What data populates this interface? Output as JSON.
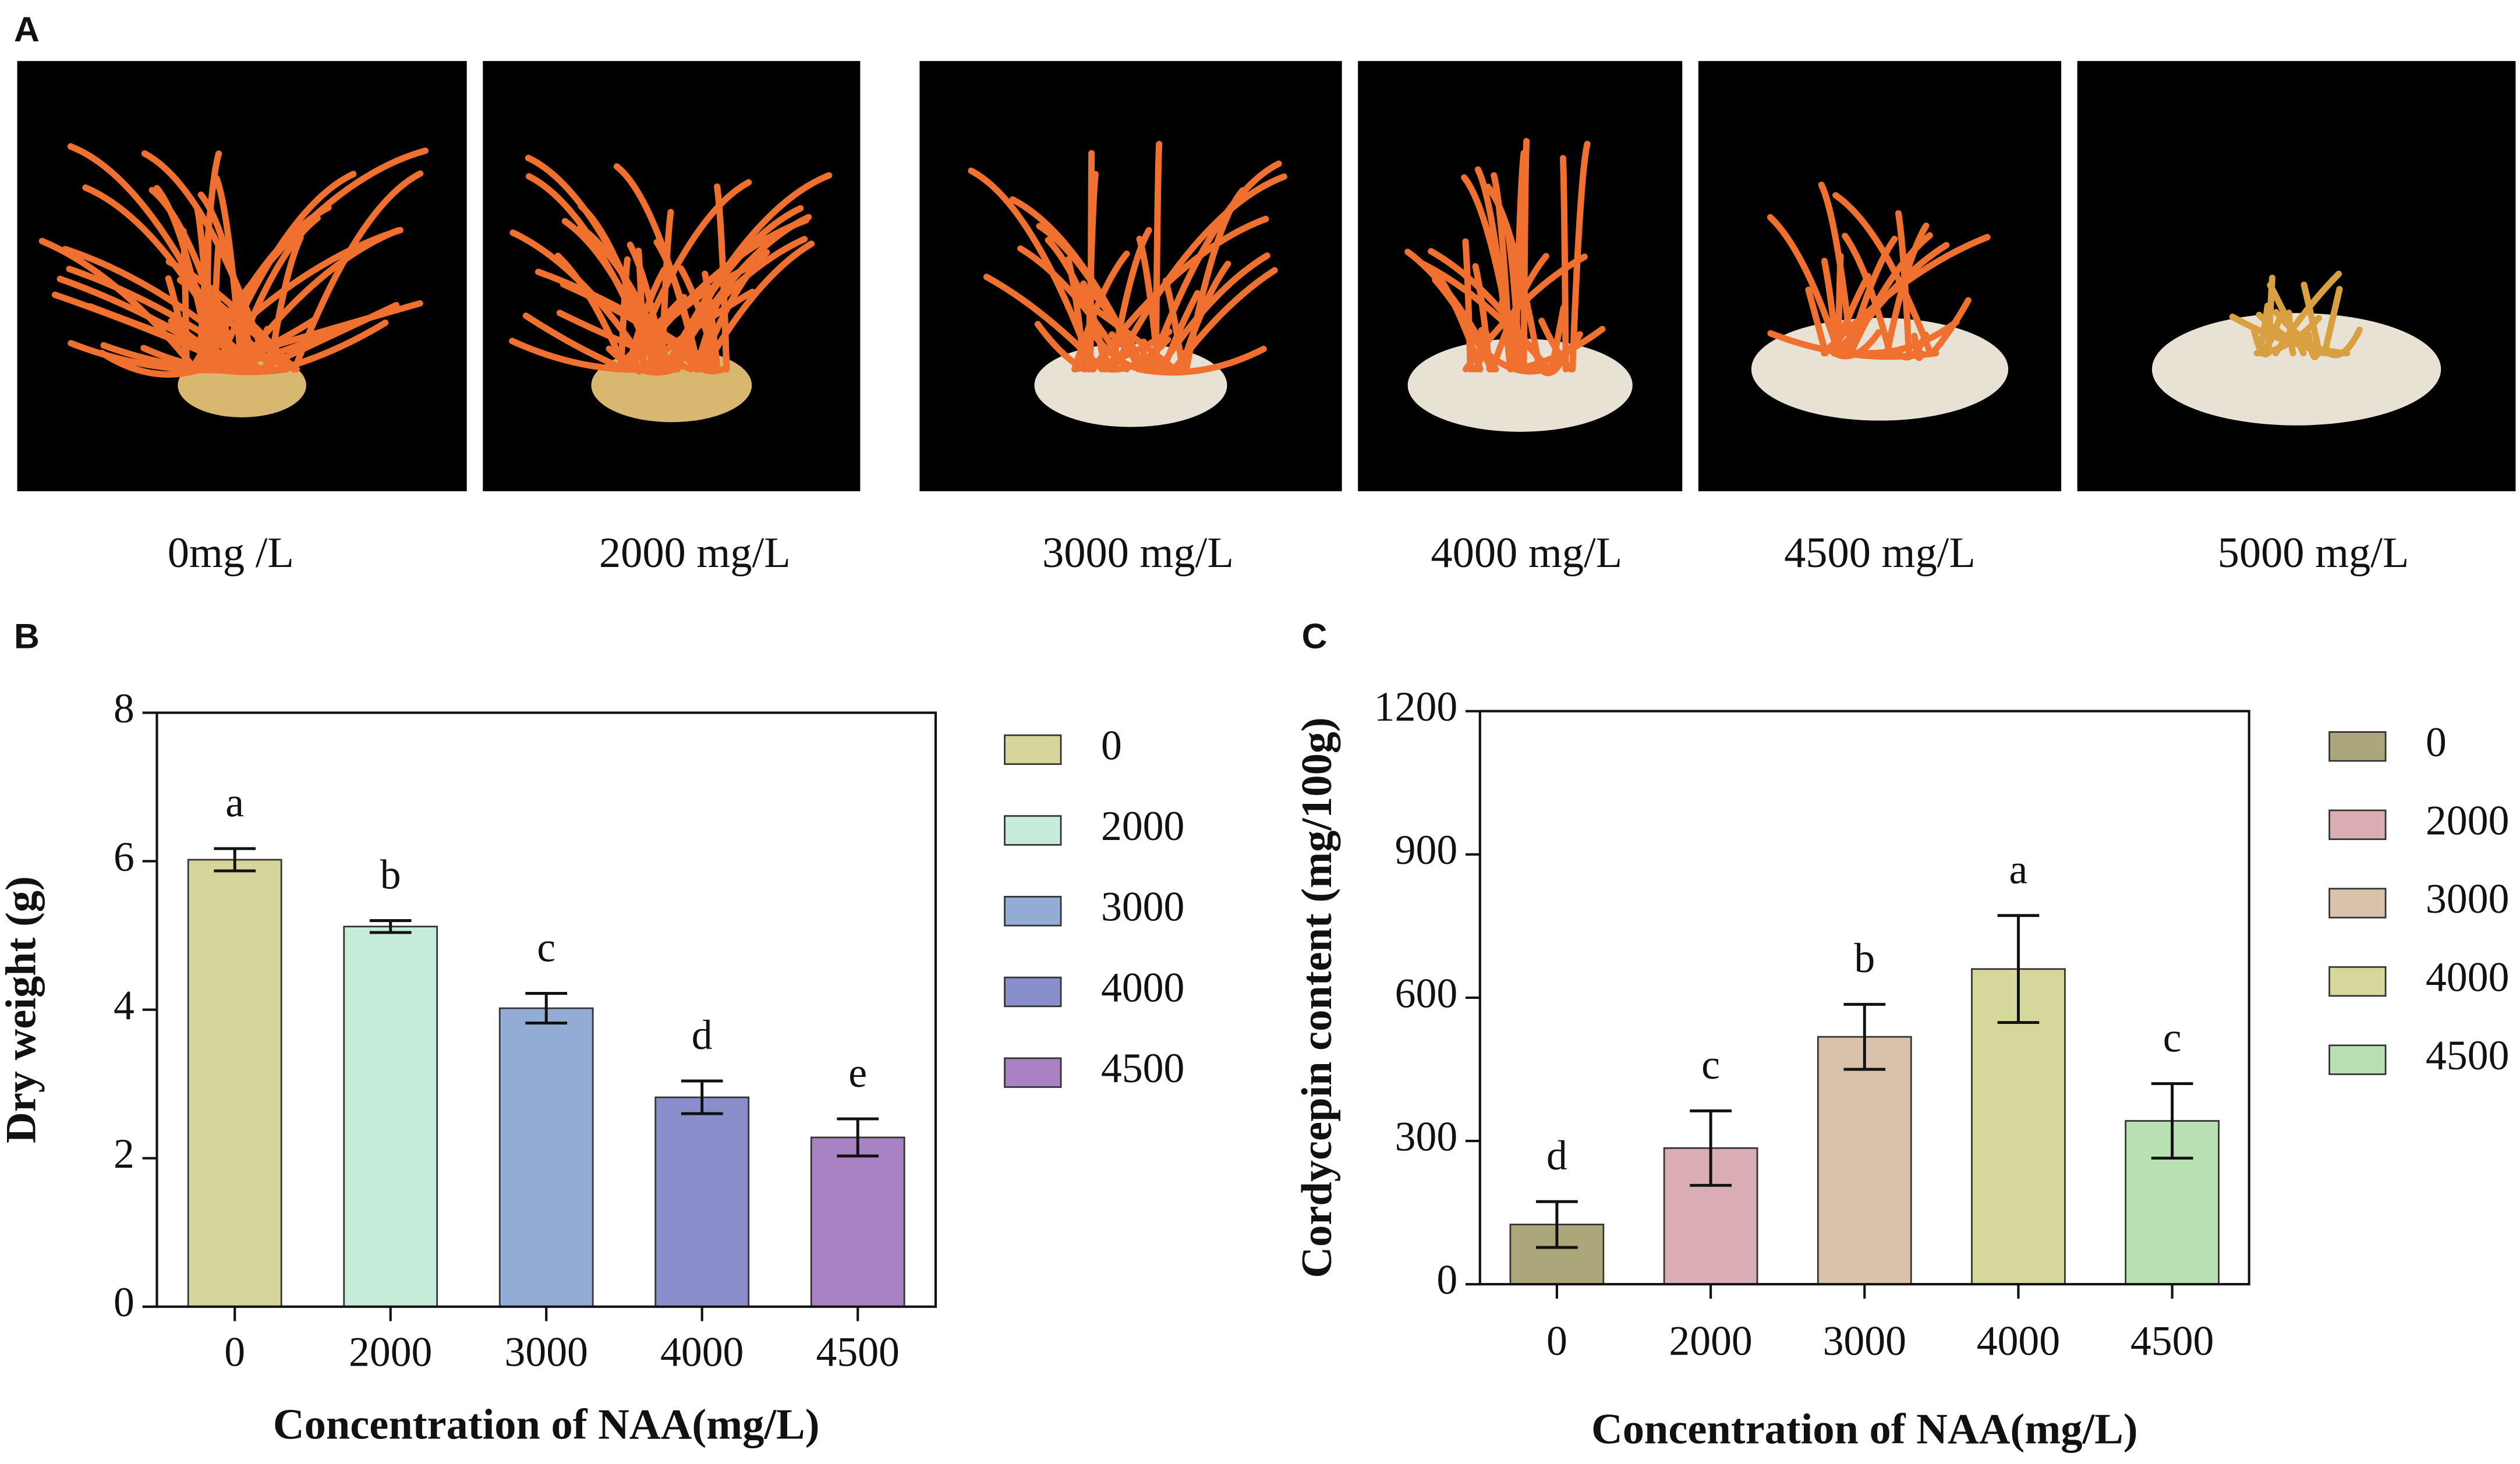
{
  "figure": {
    "panel_label": "A",
    "photo_captions": [
      "0mg /L",
      "2000 mg/L",
      "3000 mg/L",
      "4000 mg/L",
      "4500 mg/L",
      "5000 mg/L"
    ]
  },
  "chart_data": [
    {
      "type": "bar",
      "panel_label": "B",
      "x_label": "Concentration of NAA(mg/L)",
      "y_label": "Dry weight (g)",
      "categories": [
        "0",
        "2000",
        "3000",
        "4000",
        "4500"
      ],
      "values": [
        6.02,
        5.12,
        4.02,
        2.82,
        2.28
      ],
      "errors": [
        0.15,
        0.08,
        0.2,
        0.22,
        0.25
      ],
      "annotations": [
        "a",
        "b",
        "c",
        "d",
        "e"
      ],
      "colors": [
        "#d6d59b",
        "#c4ecd8",
        "#93acd6",
        "#8a8fcc",
        "#a882c2"
      ],
      "ylim": [
        0,
        8
      ],
      "yticks": [
        0,
        2,
        4,
        6,
        8
      ],
      "legend": "right"
    },
    {
      "type": "bar",
      "panel_label": "C",
      "x_label": "Concentration of NAA(mg/L)",
      "y_label": "Cordycepin content (mg/100g)",
      "categories": [
        "0",
        "2000",
        "3000",
        "4000",
        "4500"
      ],
      "values": [
        125,
        285,
        518,
        660,
        342
      ],
      "errors": [
        48,
        78,
        68,
        112,
        78
      ],
      "annotations": [
        "d",
        "c",
        "b",
        "a",
        "c"
      ],
      "colors": [
        "#aca77a",
        "#d9adb3",
        "#d8c2ab",
        "#d6d79a",
        "#b8e0b2"
      ],
      "ylim": [
        0,
        1200
      ],
      "yticks": [
        0,
        300,
        600,
        900,
        1200
      ],
      "legend": "right"
    }
  ]
}
